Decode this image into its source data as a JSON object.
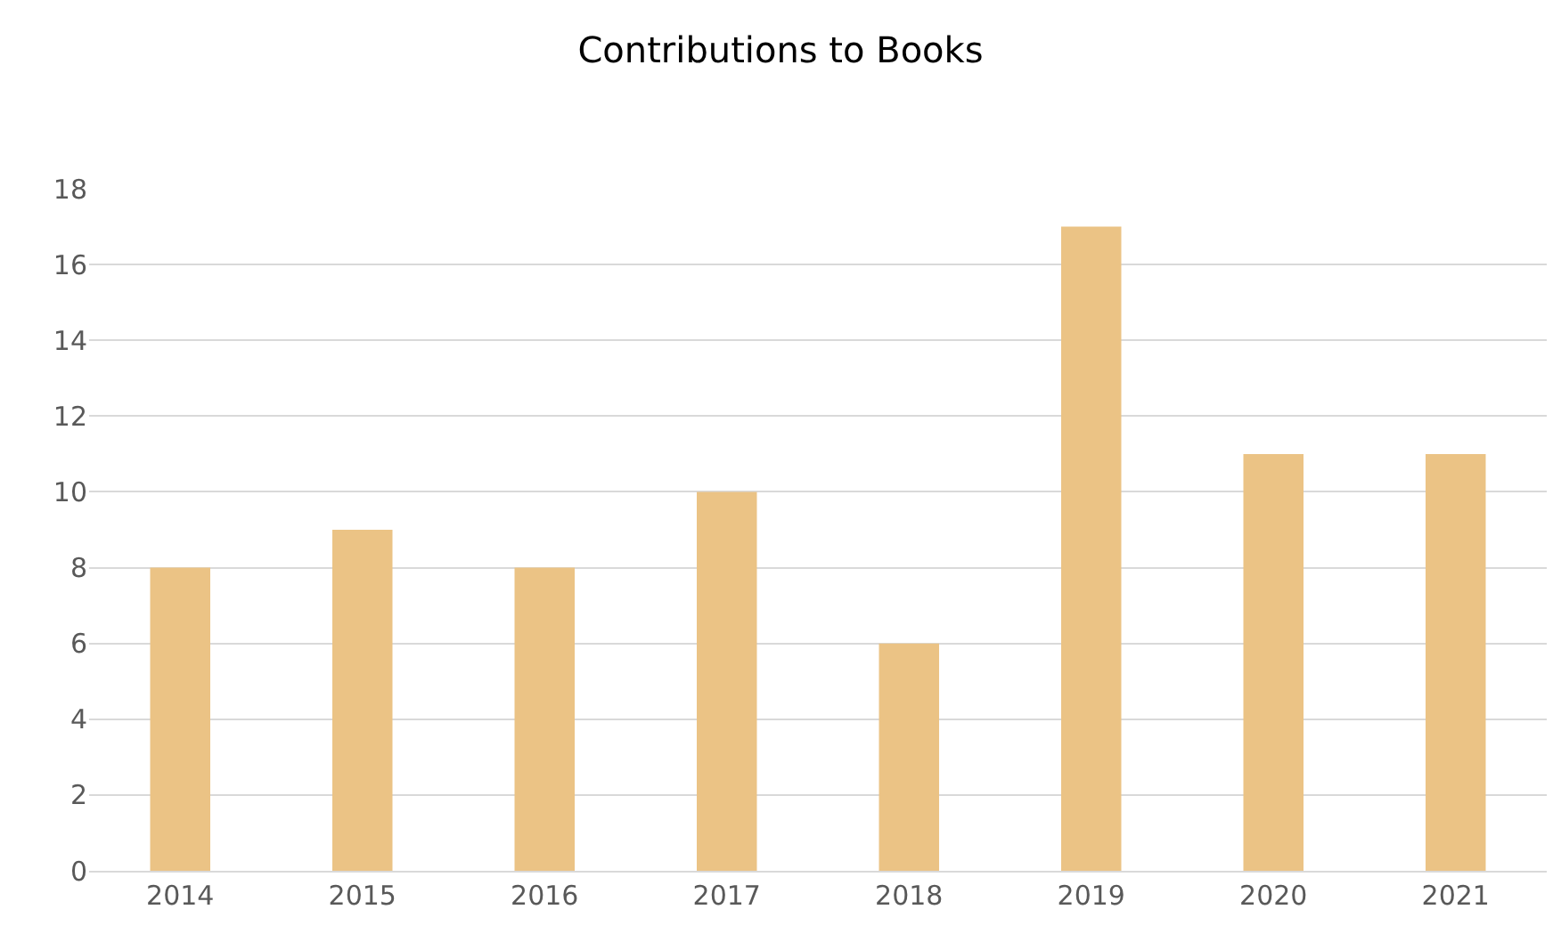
{
  "chart_data": {
    "type": "bar",
    "title": "Contributions to Books",
    "categories": [
      "2014",
      "2015",
      "2016",
      "2017",
      "2018",
      "2019",
      "2020",
      "2021"
    ],
    "values": [
      8,
      9,
      8,
      10,
      6,
      17,
      11,
      11
    ],
    "color": "#ebc385",
    "ylim": [
      0,
      18
    ],
    "yticks": [
      0,
      2,
      4,
      6,
      8,
      10,
      12,
      14,
      16,
      18
    ],
    "grid": "y",
    "legend": false
  }
}
